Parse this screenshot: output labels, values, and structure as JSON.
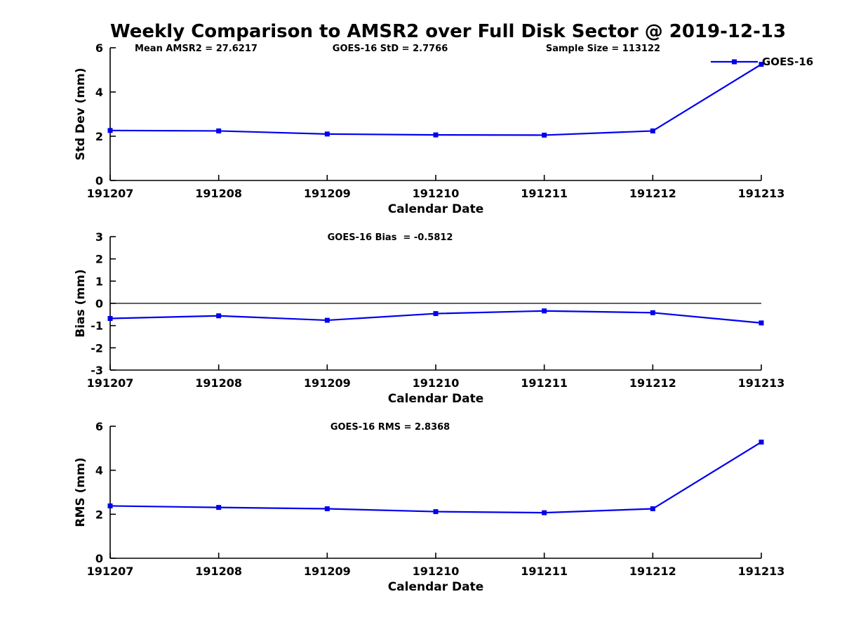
{
  "title": "Weekly Comparison to AMSR2 over Full Disk Sector @ 2019-12-13",
  "colors": {
    "line": "#0000EE",
    "axis": "#000000",
    "background": "#FFFFFF"
  },
  "stats": {
    "mean_amsr2": 27.6217,
    "goes16_std": 2.7766,
    "sample_size": 113122,
    "goes16_bias": -0.5812,
    "goes16_rms": 2.8368
  },
  "chart_data": [
    {
      "id": "std-dev",
      "type": "line",
      "categories": [
        "191207",
        "191208",
        "191209",
        "191210",
        "191211",
        "191212",
        "191213"
      ],
      "series": [
        {
          "name": "GOES-16",
          "values": [
            2.26,
            2.24,
            2.1,
            2.06,
            2.05,
            2.24,
            5.25
          ]
        }
      ],
      "xlabel": "Calendar Date",
      "ylabel": "Std Dev (mm)",
      "ylim": [
        0,
        6
      ],
      "yticks": [
        0,
        2,
        4,
        6
      ],
      "grid": false,
      "zero_line": false,
      "legend": {
        "label": "GOES-16",
        "position": "top-right"
      },
      "annotations": [
        {
          "text": "Mean AMSR2 = 27.6217",
          "xfrac": 0.132
        },
        {
          "text": "GOES-16 StD = 2.7766",
          "xfrac": 0.43
        },
        {
          "text": "Sample Size = 113122",
          "xfrac": 0.757
        }
      ]
    },
    {
      "id": "bias",
      "type": "line",
      "categories": [
        "191207",
        "191208",
        "191209",
        "191210",
        "191211",
        "191212",
        "191213"
      ],
      "series": [
        {
          "name": "GOES-16",
          "values": [
            -0.68,
            -0.56,
            -0.76,
            -0.46,
            -0.34,
            -0.42,
            -0.88
          ]
        }
      ],
      "xlabel": "Calendar Date",
      "ylabel": "Bias (mm)",
      "ylim": [
        -3,
        3
      ],
      "yticks": [
        -3,
        -2,
        -1,
        0,
        1,
        2,
        3
      ],
      "grid": false,
      "zero_line": true,
      "legend": null,
      "annotations": [
        {
          "text": "GOES-16 Bias  = -0.5812",
          "xfrac": 0.43
        }
      ]
    },
    {
      "id": "rms",
      "type": "line",
      "categories": [
        "191207",
        "191208",
        "191209",
        "191210",
        "191211",
        "191212",
        "191213"
      ],
      "series": [
        {
          "name": "GOES-16",
          "values": [
            2.38,
            2.31,
            2.25,
            2.12,
            2.07,
            2.25,
            5.28
          ]
        }
      ],
      "xlabel": "Calendar Date",
      "ylabel": "RMS (mm)",
      "ylim": [
        0,
        6
      ],
      "yticks": [
        0,
        2,
        4,
        6
      ],
      "grid": false,
      "zero_line": false,
      "legend": null,
      "annotations": [
        {
          "text": "GOES-16 RMS = 2.8368",
          "xfrac": 0.43
        }
      ]
    }
  ]
}
